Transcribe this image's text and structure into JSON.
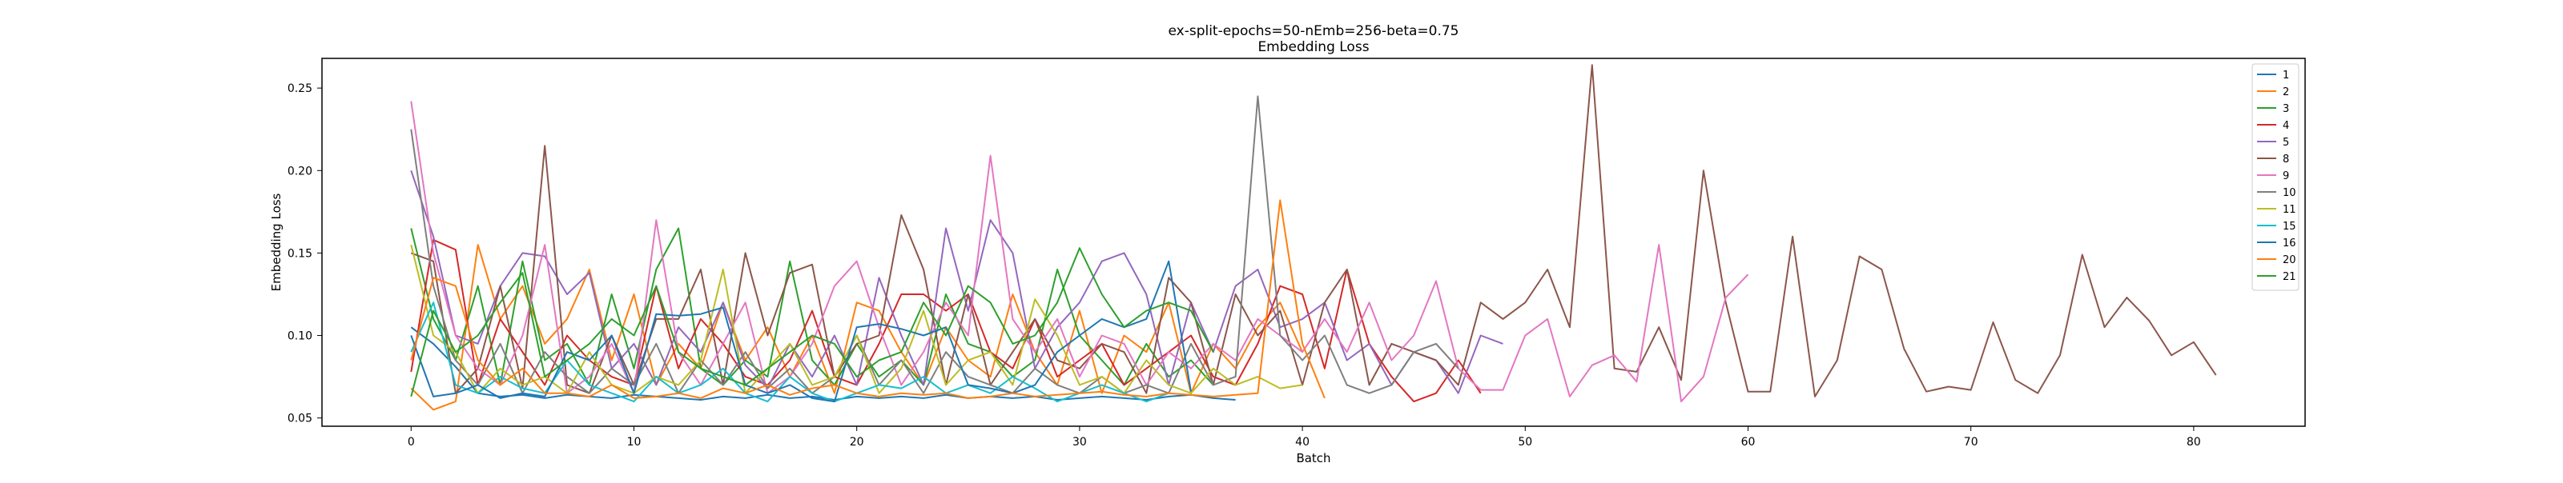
{
  "chart_data": {
    "type": "line",
    "title": "ex-split-epochs=50-nEmb=256-beta=0.75",
    "subtitle": "Embedding Loss",
    "xlabel": "Batch",
    "ylabel": "Embedding Loss",
    "xlim": [
      -4,
      85
    ],
    "ylim": [
      0.045,
      0.268
    ],
    "xticks": [
      0,
      10,
      20,
      30,
      40,
      50,
      60,
      70,
      80
    ],
    "yticks": [
      0.05,
      0.1,
      0.15,
      0.2,
      0.25
    ],
    "ytick_labels": [
      "0.05",
      "0.10",
      "0.15",
      "0.20",
      "0.25"
    ],
    "grid": false,
    "legend_position": "top-right",
    "series": [
      {
        "name": "1",
        "color": "#1f77b4",
        "values": [
          0.105,
          0.095,
          0.081,
          0.065,
          0.063,
          0.064,
          0.062,
          0.064,
          0.063,
          0.062,
          0.064,
          0.063,
          0.062,
          0.061,
          0.063,
          0.062,
          0.064,
          0.062,
          0.063,
          0.061,
          0.063,
          0.062,
          0.063,
          0.062,
          0.064,
          0.062,
          0.063,
          0.062,
          0.063,
          0.061,
          0.062,
          0.063,
          0.062,
          0.061,
          0.063,
          0.064,
          0.062,
          0.061
        ]
      },
      {
        "name": "2",
        "color": "#ff7f0e",
        "values": [
          0.068,
          0.055,
          0.06,
          0.155,
          0.11,
          0.13,
          0.095,
          0.11,
          0.14,
          0.085,
          0.125,
          0.07,
          0.095,
          0.08,
          0.12,
          0.085,
          0.105,
          0.075,
          0.1,
          0.065,
          0.12,
          0.115,
          0.09,
          0.07,
          0.105,
          0.085,
          0.075,
          0.125,
          0.09,
          0.07,
          0.115,
          0.065,
          0.1,
          0.09,
          0.12,
          0.065,
          0.095,
          0.08,
          0.105,
          0.12,
          0.09
        ]
      },
      {
        "name": "3",
        "color": "#2ca02c",
        "values": [
          0.165,
          0.11,
          0.085,
          0.13,
          0.07,
          0.145,
          0.085,
          0.095,
          0.07,
          0.125,
          0.08,
          0.14,
          0.165,
          0.08,
          0.07,
          0.085,
          0.075,
          0.145,
          0.085,
          0.07,
          0.095,
          0.075,
          0.085,
          0.07,
          0.125,
          0.095,
          0.09,
          0.075,
          0.085,
          0.14,
          0.1,
          0.085,
          0.07,
          0.095,
          0.075,
          0.085,
          0.07
        ]
      },
      {
        "name": "4",
        "color": "#d62728",
        "values": [
          0.078,
          0.158,
          0.152,
          0.07,
          0.11,
          0.09,
          0.07,
          0.1,
          0.085,
          0.075,
          0.07,
          0.13,
          0.08,
          0.11,
          0.095,
          0.075,
          0.07,
          0.085,
          0.115,
          0.075,
          0.07,
          0.095,
          0.125,
          0.125,
          0.115,
          0.125,
          0.09,
          0.08,
          0.11,
          0.075,
          0.085,
          0.095,
          0.07,
          0.08,
          0.09,
          0.1,
          0.075,
          0.07,
          0.095,
          0.13,
          0.125,
          0.08,
          0.14,
          0.095,
          0.075,
          0.06,
          0.065,
          0.085,
          0.065
        ]
      },
      {
        "name": "5",
        "color": "#9467bd",
        "values": [
          0.2,
          0.16,
          0.1,
          0.095,
          0.13,
          0.15,
          0.148,
          0.125,
          0.138,
          0.08,
          0.095,
          0.07,
          0.105,
          0.09,
          0.12,
          0.082,
          0.068,
          0.095,
          0.075,
          0.1,
          0.07,
          0.135,
          0.1,
          0.07,
          0.165,
          0.115,
          0.17,
          0.15,
          0.08,
          0.105,
          0.12,
          0.145,
          0.15,
          0.125,
          0.07,
          0.12,
          0.09,
          0.13,
          0.14,
          0.105,
          0.11,
          0.12,
          0.085,
          0.095,
          0.07,
          0.09,
          0.085,
          0.065,
          0.1,
          0.095
        ]
      },
      {
        "name": "8",
        "color": "#8c564b",
        "values": [
          0.15,
          0.145,
          0.065,
          0.08,
          0.13,
          0.068,
          0.215,
          0.07,
          0.065,
          0.1,
          0.07,
          0.11,
          0.11,
          0.14,
          0.07,
          0.15,
          0.1,
          0.138,
          0.143,
          0.075,
          0.095,
          0.1,
          0.173,
          0.14,
          0.07,
          0.125,
          0.07,
          0.09,
          0.11,
          0.085,
          0.08,
          0.095,
          0.09,
          0.065,
          0.135,
          0.12,
          0.07,
          0.125,
          0.1,
          0.115,
          0.07,
          0.12,
          0.14,
          0.07,
          0.095,
          0.09,
          0.085,
          0.07,
          0.12,
          0.11,
          0.12,
          0.14,
          0.105,
          0.264,
          0.08,
          0.078,
          0.105,
          0.073,
          0.2,
          0.12,
          0.066,
          0.066,
          0.16,
          0.063,
          0.085,
          0.148,
          0.14,
          0.092,
          0.066,
          0.069,
          0.067,
          0.108,
          0.073,
          0.065,
          0.088,
          0.149,
          0.105,
          0.123,
          0.109,
          0.088,
          0.096,
          0.076
        ]
      },
      {
        "name": "9",
        "color": "#e377c2",
        "values": [
          0.242,
          0.15,
          0.1,
          0.08,
          0.07,
          0.1,
          0.155,
          0.065,
          0.075,
          0.095,
          0.065,
          0.17,
          0.09,
          0.07,
          0.095,
          0.12,
          0.065,
          0.075,
          0.095,
          0.13,
          0.145,
          0.105,
          0.07,
          0.09,
          0.12,
          0.1,
          0.209,
          0.11,
          0.09,
          0.11,
          0.075,
          0.1,
          0.095,
          0.07,
          0.09,
          0.08,
          0.095,
          0.085,
          0.11,
          0.1,
          0.09,
          0.11,
          0.09,
          0.12,
          0.085,
          0.1,
          0.133,
          0.08,
          0.067,
          0.067,
          0.1,
          0.11,
          0.063,
          0.082,
          0.088,
          0.072,
          0.155,
          0.06,
          0.075,
          0.123,
          0.137
        ]
      },
      {
        "name": "10",
        "color": "#7f7f7f",
        "values": [
          0.225,
          0.13,
          0.085,
          0.07,
          0.095,
          0.065,
          0.09,
          0.075,
          0.065,
          0.08,
          0.07,
          0.095,
          0.065,
          0.085,
          0.07,
          0.09,
          0.068,
          0.08,
          0.065,
          0.075,
          0.1,
          0.07,
          0.085,
          0.065,
          0.09,
          0.075,
          0.07,
          0.065,
          0.08,
          0.07,
          0.065,
          0.075,
          0.065,
          0.07,
          0.065,
          0.095,
          0.07,
          0.075,
          0.245,
          0.1,
          0.085,
          0.1,
          0.07,
          0.065,
          0.07,
          0.09,
          0.095,
          0.08
        ]
      },
      {
        "name": "11",
        "color": "#bcbd22",
        "values": [
          0.155,
          0.1,
          0.09,
          0.065,
          0.08,
          0.07,
          0.075,
          0.065,
          0.09,
          0.07,
          0.065,
          0.075,
          0.07,
          0.085,
          0.14,
          0.065,
          0.08,
          0.095,
          0.07,
          0.075,
          0.1,
          0.065,
          0.08,
          0.115,
          0.07,
          0.085,
          0.09,
          0.07,
          0.122,
          0.1,
          0.07,
          0.075,
          0.065,
          0.085,
          0.07,
          0.065,
          0.08,
          0.07,
          0.075,
          0.068,
          0.07
        ]
      },
      {
        "name": "15",
        "color": "#17becf",
        "values": [
          0.09,
          0.12,
          0.07,
          0.065,
          0.075,
          0.068,
          0.065,
          0.085,
          0.07,
          0.065,
          0.06,
          0.075,
          0.065,
          0.07,
          0.08,
          0.065,
          0.06,
          0.075,
          0.065,
          0.06,
          0.065,
          0.07,
          0.068,
          0.075,
          0.065,
          0.07,
          0.065,
          0.075,
          0.068,
          0.06,
          0.065,
          0.07,
          0.065,
          0.06,
          0.065
        ]
      },
      {
        "name": "16",
        "color": "#1f77b4",
        "values": [
          0.1,
          0.063,
          0.065,
          0.07,
          0.062,
          0.065,
          0.063,
          0.09,
          0.085,
          0.1,
          0.065,
          0.113,
          0.112,
          0.113,
          0.117,
          0.07,
          0.065,
          0.07,
          0.062,
          0.06,
          0.105,
          0.107,
          0.104,
          0.1,
          0.105,
          0.07,
          0.068,
          0.065,
          0.07,
          0.09,
          0.1,
          0.11,
          0.105,
          0.11,
          0.145,
          0.066
        ]
      },
      {
        "name": "20",
        "color": "#ff7f0e",
        "values": [
          0.085,
          0.135,
          0.13,
          0.085,
          0.07,
          0.08,
          0.065,
          0.065,
          0.063,
          0.07,
          0.062,
          0.063,
          0.065,
          0.062,
          0.068,
          0.065,
          0.07,
          0.064,
          0.068,
          0.07,
          0.065,
          0.063,
          0.065,
          0.064,
          0.065,
          0.062,
          0.063,
          0.065,
          0.063,
          0.064,
          0.065,
          0.066,
          0.064,
          0.063,
          0.065,
          0.064,
          0.063,
          0.064,
          0.065,
          0.182,
          0.095,
          0.062
        ]
      },
      {
        "name": "21",
        "color": "#2ca02c",
        "values": [
          0.063,
          0.115,
          0.09,
          0.1,
          0.12,
          0.138,
          0.075,
          0.085,
          0.095,
          0.11,
          0.1,
          0.13,
          0.09,
          0.08,
          0.075,
          0.07,
          0.08,
          0.09,
          0.1,
          0.095,
          0.075,
          0.085,
          0.09,
          0.12,
          0.1,
          0.13,
          0.12,
          0.095,
          0.1,
          0.12,
          0.153,
          0.125,
          0.105,
          0.115,
          0.12,
          0.115,
          0.09
        ]
      }
    ]
  }
}
